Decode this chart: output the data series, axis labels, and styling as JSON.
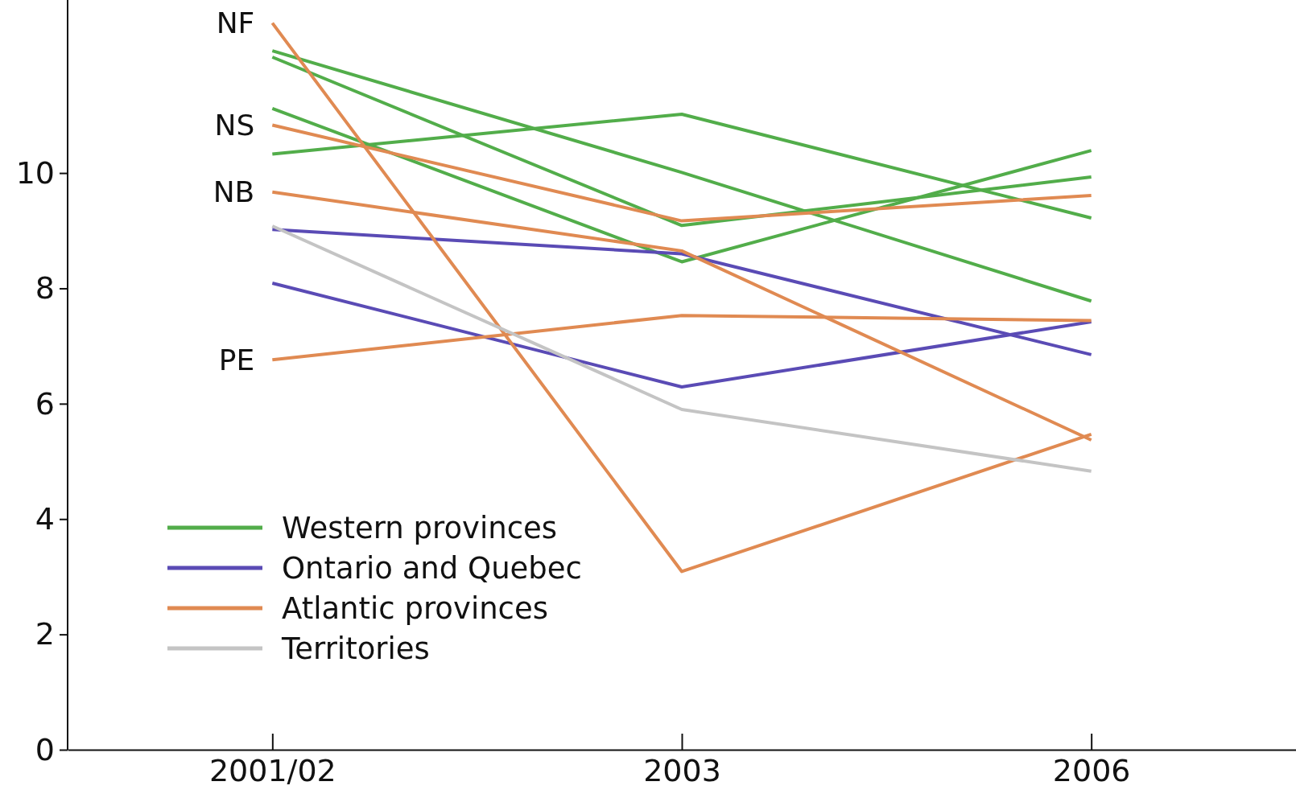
{
  "chart_data": {
    "type": "line",
    "categories": [
      "2001/02",
      "2003",
      "2006"
    ],
    "ylim": [
      0,
      13
    ],
    "yticks": [
      0,
      2,
      4,
      6,
      8,
      10
    ],
    "legend": "bottom left",
    "grid": false,
    "series": [
      {
        "name": "Western provinces",
        "color": "#52ad4a",
        "values": [
          10.33,
          11.02,
          9.22
        ]
      },
      {
        "color": "#52ad4a",
        "values": [
          12.12,
          10.01,
          7.78
        ]
      },
      {
        "color": "#52ad4a",
        "values": [
          12.01,
          9.09,
          9.93
        ]
      },
      {
        "color": "#52ad4a",
        "values": [
          11.12,
          8.46,
          10.39
        ]
      },
      {
        "name": "Ontario and Quebec",
        "color": "#5a4bb5",
        "values": [
          9.02,
          8.6,
          6.85
        ]
      },
      {
        "color": "#5a4bb5",
        "values": [
          8.09,
          6.29,
          7.42
        ]
      },
      {
        "name": "Atlantic provinces",
        "color": "#e08a52",
        "values": [
          12.6,
          3.09,
          5.47
        ]
      },
      {
        "color": "#e08a52",
        "values": [
          10.83,
          9.17,
          9.61
        ]
      },
      {
        "color": "#e08a52",
        "values": [
          9.67,
          8.65,
          5.37
        ]
      },
      {
        "color": "#e08a52",
        "values": [
          6.76,
          7.53,
          7.44
        ]
      },
      {
        "name": "Territories",
        "color": "#c4c4c4",
        "values": [
          9.08,
          5.9,
          4.83
        ]
      }
    ],
    "annotations": [
      {
        "text": "NF",
        "x": "2001/02",
        "y": 12.6
      },
      {
        "text": "NS",
        "x": "2001/02",
        "y": 10.83
      },
      {
        "text": "NB",
        "x": "2001/02",
        "y": 9.67
      },
      {
        "text": "PE",
        "x": "2001/02",
        "y": 6.76
      }
    ]
  }
}
